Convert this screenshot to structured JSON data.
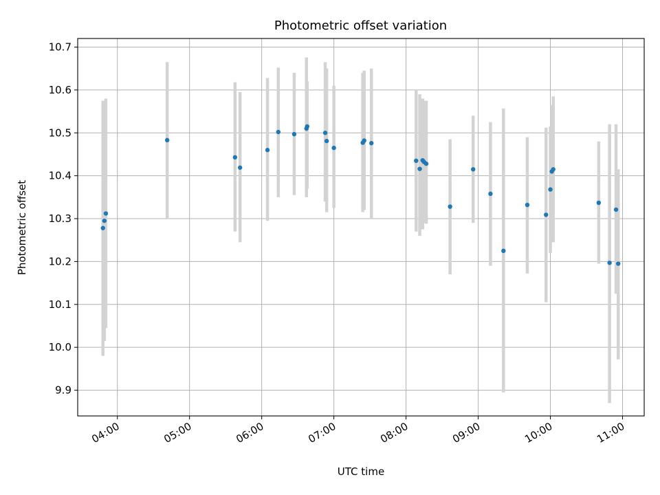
{
  "chart_data": {
    "type": "scatter",
    "title": "Photometric offset variation",
    "xlabel": "UTC time",
    "ylabel": "Photometric offset",
    "x_unit": "hours (UTC)",
    "xlim": [
      3.45,
      11.3
    ],
    "ylim": [
      9.84,
      10.72
    ],
    "grid": true,
    "x_ticks": [
      {
        "value": 4,
        "label": "04:00"
      },
      {
        "value": 5,
        "label": "05:00"
      },
      {
        "value": 6,
        "label": "06:00"
      },
      {
        "value": 7,
        "label": "07:00"
      },
      {
        "value": 8,
        "label": "08:00"
      },
      {
        "value": 9,
        "label": "09:00"
      },
      {
        "value": 10,
        "label": "10:00"
      },
      {
        "value": 11,
        "label": "11:00"
      }
    ],
    "y_ticks": [
      {
        "value": 9.9,
        "label": "9.9"
      },
      {
        "value": 10.0,
        "label": "10.0"
      },
      {
        "value": 10.1,
        "label": "10.1"
      },
      {
        "value": 10.2,
        "label": "10.2"
      },
      {
        "value": 10.3,
        "label": "10.3"
      },
      {
        "value": 10.4,
        "label": "10.4"
      },
      {
        "value": 10.5,
        "label": "10.5"
      },
      {
        "value": 10.6,
        "label": "10.6"
      },
      {
        "value": 10.7,
        "label": "10.7"
      }
    ],
    "colors": {
      "points": "#1f77b4",
      "error_bars": "#d3d3d3",
      "grid": "#b0b0b0"
    },
    "points": [
      {
        "x": 3.8,
        "y": 10.278,
        "ylow": 9.98,
        "yhigh": 10.575
      },
      {
        "x": 3.82,
        "y": 10.295,
        "ylow": 10.015,
        "yhigh": 10.57
      },
      {
        "x": 3.84,
        "y": 10.312,
        "ylow": 10.045,
        "yhigh": 10.58
      },
      {
        "x": 4.69,
        "y": 10.483,
        "ylow": 10.3,
        "yhigh": 10.665
      },
      {
        "x": 5.63,
        "y": 10.443,
        "ylow": 10.27,
        "yhigh": 10.618
      },
      {
        "x": 5.7,
        "y": 10.419,
        "ylow": 10.245,
        "yhigh": 10.595
      },
      {
        "x": 6.08,
        "y": 10.46,
        "ylow": 10.295,
        "yhigh": 10.628
      },
      {
        "x": 6.23,
        "y": 10.502,
        "ylow": 10.35,
        "yhigh": 10.652
      },
      {
        "x": 6.45,
        "y": 10.497,
        "ylow": 10.355,
        "yhigh": 10.64
      },
      {
        "x": 6.62,
        "y": 10.51,
        "ylow": 10.35,
        "yhigh": 10.676
      },
      {
        "x": 6.63,
        "y": 10.515,
        "ylow": 10.37,
        "yhigh": 10.62
      },
      {
        "x": 6.88,
        "y": 10.5,
        "ylow": 10.34,
        "yhigh": 10.665
      },
      {
        "x": 6.9,
        "y": 10.481,
        "ylow": 10.315,
        "yhigh": 10.65
      },
      {
        "x": 7.0,
        "y": 10.465,
        "ylow": 10.325,
        "yhigh": 10.61
      },
      {
        "x": 7.4,
        "y": 10.477,
        "ylow": 10.315,
        "yhigh": 10.64
      },
      {
        "x": 7.42,
        "y": 10.482,
        "ylow": 10.32,
        "yhigh": 10.645
      },
      {
        "x": 7.52,
        "y": 10.476,
        "ylow": 10.3,
        "yhigh": 10.65
      },
      {
        "x": 8.14,
        "y": 10.435,
        "ylow": 10.27,
        "yhigh": 10.6
      },
      {
        "x": 8.19,
        "y": 10.416,
        "ylow": 10.26,
        "yhigh": 10.59
      },
      {
        "x": 8.23,
        "y": 10.436,
        "ylow": 10.275,
        "yhigh": 10.58
      },
      {
        "x": 8.25,
        "y": 10.432,
        "ylow": 10.29,
        "yhigh": 10.575
      },
      {
        "x": 8.28,
        "y": 10.428,
        "ylow": 10.288,
        "yhigh": 10.575
      },
      {
        "x": 8.61,
        "y": 10.328,
        "ylow": 10.17,
        "yhigh": 10.485
      },
      {
        "x": 8.93,
        "y": 10.415,
        "ylow": 10.29,
        "yhigh": 10.54
      },
      {
        "x": 9.17,
        "y": 10.358,
        "ylow": 10.19,
        "yhigh": 10.525
      },
      {
        "x": 9.35,
        "y": 10.225,
        "ylow": 9.895,
        "yhigh": 10.557
      },
      {
        "x": 9.68,
        "y": 10.332,
        "ylow": 10.172,
        "yhigh": 10.49
      },
      {
        "x": 9.94,
        "y": 10.309,
        "ylow": 10.105,
        "yhigh": 10.512
      },
      {
        "x": 10.0,
        "y": 10.368,
        "ylow": 10.22,
        "yhigh": 10.515
      },
      {
        "x": 10.02,
        "y": 10.41,
        "ylow": 10.255,
        "yhigh": 10.565
      },
      {
        "x": 10.04,
        "y": 10.415,
        "ylow": 10.245,
        "yhigh": 10.585
      },
      {
        "x": 10.67,
        "y": 10.337,
        "ylow": 10.195,
        "yhigh": 10.48
      },
      {
        "x": 10.82,
        "y": 10.197,
        "ylow": 9.87,
        "yhigh": 10.52
      },
      {
        "x": 10.91,
        "y": 10.321,
        "ylow": 10.125,
        "yhigh": 10.52
      },
      {
        "x": 10.94,
        "y": 10.195,
        "ylow": 9.972,
        "yhigh": 10.415
      }
    ]
  }
}
